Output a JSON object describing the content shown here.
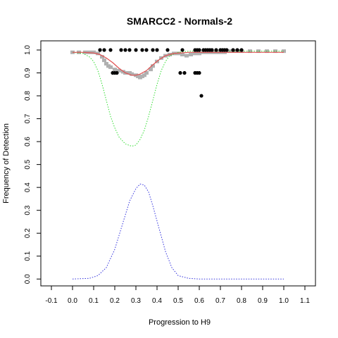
{
  "chart_data": {
    "type": "scatter",
    "title": "SMARCC2 - Normals-2",
    "xlabel": "Progression to H9",
    "ylabel": "Frequency of Detection",
    "xlim": [
      -0.15,
      1.15
    ],
    "ylim": [
      -0.03,
      1.04
    ],
    "x_ticks": [
      "-0.1",
      "0.0",
      "0.1",
      "0.2",
      "0.3",
      "0.4",
      "0.5",
      "0.6",
      "0.7",
      "0.8",
      "0.9",
      "1.0",
      "1.1"
    ],
    "y_ticks": [
      "0.0",
      "0.1",
      "0.2",
      "0.3",
      "0.4",
      "0.5",
      "0.6",
      "0.7",
      "0.8",
      "0.9",
      "1.0"
    ],
    "grid": false,
    "legend": "none",
    "series": [
      {
        "kind": "points",
        "color": "#000000",
        "points": [
          [
            0.13,
            1.0
          ],
          [
            0.15,
            1.0
          ],
          [
            0.18,
            1.0
          ],
          [
            0.23,
            1.0
          ],
          [
            0.25,
            1.0
          ],
          [
            0.27,
            1.0
          ],
          [
            0.3,
            1.0
          ],
          [
            0.33,
            1.0
          ],
          [
            0.35,
            1.0
          ],
          [
            0.38,
            1.0
          ],
          [
            0.4,
            1.0
          ],
          [
            0.45,
            1.0
          ],
          [
            0.52,
            1.0
          ],
          [
            0.58,
            1.0
          ],
          [
            0.59,
            1.0
          ],
          [
            0.6,
            1.0
          ],
          [
            0.62,
            1.0
          ],
          [
            0.63,
            1.0
          ],
          [
            0.64,
            1.0
          ],
          [
            0.65,
            1.0
          ],
          [
            0.66,
            1.0
          ],
          [
            0.68,
            1.0
          ],
          [
            0.7,
            1.0
          ],
          [
            0.71,
            1.0
          ],
          [
            0.72,
            1.0
          ],
          [
            0.73,
            1.0
          ],
          [
            0.76,
            1.0
          ],
          [
            0.78,
            1.0
          ],
          [
            0.8,
            1.0
          ],
          [
            0.19,
            0.9
          ],
          [
            0.2,
            0.9
          ],
          [
            0.21,
            0.9
          ],
          [
            0.51,
            0.9
          ],
          [
            0.53,
            0.9
          ],
          [
            0.58,
            0.9
          ],
          [
            0.59,
            0.9
          ],
          [
            0.6,
            0.9
          ],
          [
            0.61,
            0.8
          ]
        ]
      },
      {
        "kind": "points",
        "color": "#b0b0b0",
        "points": [
          [
            0.0,
            0.99
          ],
          [
            0.03,
            0.99
          ],
          [
            0.06,
            0.99
          ],
          [
            0.08,
            0.99
          ],
          [
            0.1,
            0.99
          ],
          [
            0.12,
            0.985
          ],
          [
            0.14,
            0.97
          ],
          [
            0.15,
            0.955
          ],
          [
            0.16,
            0.94
          ],
          [
            0.17,
            0.93
          ],
          [
            0.18,
            0.925
          ],
          [
            0.2,
            0.915
          ],
          [
            0.22,
            0.91
          ],
          [
            0.24,
            0.905
          ],
          [
            0.25,
            0.9
          ],
          [
            0.27,
            0.9
          ],
          [
            0.28,
            0.895
          ],
          [
            0.3,
            0.89
          ],
          [
            0.31,
            0.885
          ],
          [
            0.32,
            0.88
          ],
          [
            0.33,
            0.885
          ],
          [
            0.34,
            0.89
          ],
          [
            0.35,
            0.9
          ],
          [
            0.37,
            0.915
          ],
          [
            0.38,
            0.93
          ],
          [
            0.4,
            0.95
          ],
          [
            0.42,
            0.965
          ],
          [
            0.44,
            0.975
          ],
          [
            0.46,
            0.98
          ],
          [
            0.48,
            0.985
          ],
          [
            0.5,
            0.985
          ],
          [
            0.52,
            0.98
          ],
          [
            0.54,
            0.975
          ],
          [
            0.56,
            0.98
          ],
          [
            0.58,
            0.985
          ],
          [
            0.6,
            0.985
          ],
          [
            0.62,
            0.99
          ],
          [
            0.64,
            0.99
          ],
          [
            0.66,
            0.99
          ],
          [
            0.68,
            0.99
          ],
          [
            0.7,
            0.99
          ],
          [
            0.72,
            0.99
          ],
          [
            0.74,
            0.995
          ],
          [
            0.76,
            0.995
          ],
          [
            0.78,
            0.995
          ],
          [
            0.8,
            0.995
          ],
          [
            0.84,
            0.995
          ],
          [
            0.88,
            0.995
          ],
          [
            0.92,
            0.995
          ],
          [
            0.96,
            0.995
          ],
          [
            1.0,
            0.995
          ]
        ]
      },
      {
        "kind": "line",
        "style": "solid",
        "color": "#e05050",
        "points": [
          [
            0.0,
            0.99
          ],
          [
            0.05,
            0.99
          ],
          [
            0.1,
            0.987
          ],
          [
            0.13,
            0.98
          ],
          [
            0.16,
            0.965
          ],
          [
            0.19,
            0.945
          ],
          [
            0.22,
            0.92
          ],
          [
            0.25,
            0.9
          ],
          [
            0.28,
            0.89
          ],
          [
            0.3,
            0.89
          ],
          [
            0.32,
            0.895
          ],
          [
            0.35,
            0.91
          ],
          [
            0.38,
            0.935
          ],
          [
            0.41,
            0.958
          ],
          [
            0.44,
            0.975
          ],
          [
            0.48,
            0.985
          ],
          [
            0.55,
            0.99
          ],
          [
            0.65,
            0.99
          ],
          [
            0.8,
            0.99
          ],
          [
            1.0,
            0.99
          ]
        ]
      },
      {
        "kind": "line",
        "style": "dotted",
        "color": "#33dd33",
        "points": [
          [
            0.0,
            0.99
          ],
          [
            0.05,
            0.985
          ],
          [
            0.08,
            0.97
          ],
          [
            0.1,
            0.95
          ],
          [
            0.12,
            0.91
          ],
          [
            0.14,
            0.85
          ],
          [
            0.16,
            0.78
          ],
          [
            0.18,
            0.71
          ],
          [
            0.2,
            0.66
          ],
          [
            0.22,
            0.62
          ],
          [
            0.25,
            0.59
          ],
          [
            0.28,
            0.58
          ],
          [
            0.3,
            0.585
          ],
          [
            0.32,
            0.61
          ],
          [
            0.34,
            0.65
          ],
          [
            0.36,
            0.71
          ],
          [
            0.38,
            0.78
          ],
          [
            0.4,
            0.85
          ],
          [
            0.42,
            0.91
          ],
          [
            0.44,
            0.95
          ],
          [
            0.46,
            0.975
          ],
          [
            0.5,
            0.99
          ],
          [
            0.55,
            0.995
          ],
          [
            0.7,
            0.995
          ],
          [
            1.0,
            0.995
          ]
        ]
      },
      {
        "kind": "line",
        "style": "dotted",
        "color": "#3333dd",
        "points": [
          [
            0.0,
            0.0
          ],
          [
            0.08,
            0.003
          ],
          [
            0.12,
            0.015
          ],
          [
            0.16,
            0.05
          ],
          [
            0.2,
            0.13
          ],
          [
            0.24,
            0.25
          ],
          [
            0.27,
            0.34
          ],
          [
            0.3,
            0.395
          ],
          [
            0.32,
            0.415
          ],
          [
            0.34,
            0.41
          ],
          [
            0.36,
            0.38
          ],
          [
            0.38,
            0.32
          ],
          [
            0.41,
            0.22
          ],
          [
            0.44,
            0.12
          ],
          [
            0.47,
            0.05
          ],
          [
            0.5,
            0.015
          ],
          [
            0.55,
            0.003
          ],
          [
            0.6,
            0.0
          ],
          [
            0.8,
            0.0
          ],
          [
            1.0,
            0.0
          ]
        ]
      }
    ]
  }
}
